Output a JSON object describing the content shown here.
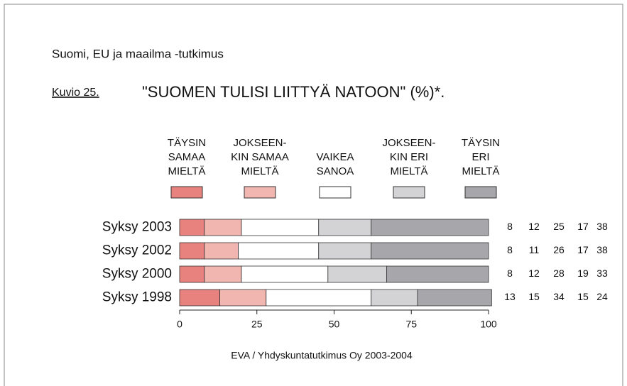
{
  "chart_data": {
    "type": "stacked-bar-horizontal",
    "header": "Suomi, EU ja maailma -tutkimus",
    "figure_label": "Kuvio 25.",
    "title": "\"SUOMEN TULISI LIITTYÄ NATOON\" (%)*.",
    "source": "EVA / Yhdyskuntatutkimus Oy 2003-2004",
    "categories": [
      "Syksy 2003",
      "Syksy 2002",
      "Syksy 2000",
      "Syksy 1998"
    ],
    "series": [
      {
        "name": "TÄYSIN\nSAMAA\nMIELTÄ",
        "color": "#e8827e",
        "values": [
          8,
          8,
          8,
          13
        ]
      },
      {
        "name": "JOKSEEN-\nKIN SAMAA\nMIELTÄ",
        "color": "#f2b6b1",
        "values": [
          12,
          11,
          12,
          15
        ]
      },
      {
        "name": "VAIKEA\nSANOA",
        "color": "#ffffff",
        "values": [
          25,
          26,
          28,
          34
        ]
      },
      {
        "name": "JOKSEEN-\nKIN ERI\nMIELTÄ",
        "color": "#d3d3d5",
        "values": [
          17,
          17,
          19,
          15
        ]
      },
      {
        "name": "TÄYSIN\nERI\nMIELTÄ",
        "color": "#a7a7ab",
        "values": [
          38,
          38,
          33,
          24
        ]
      }
    ],
    "xlim": [
      0,
      100
    ],
    "xticks": [
      0,
      25,
      50,
      75,
      100
    ]
  }
}
